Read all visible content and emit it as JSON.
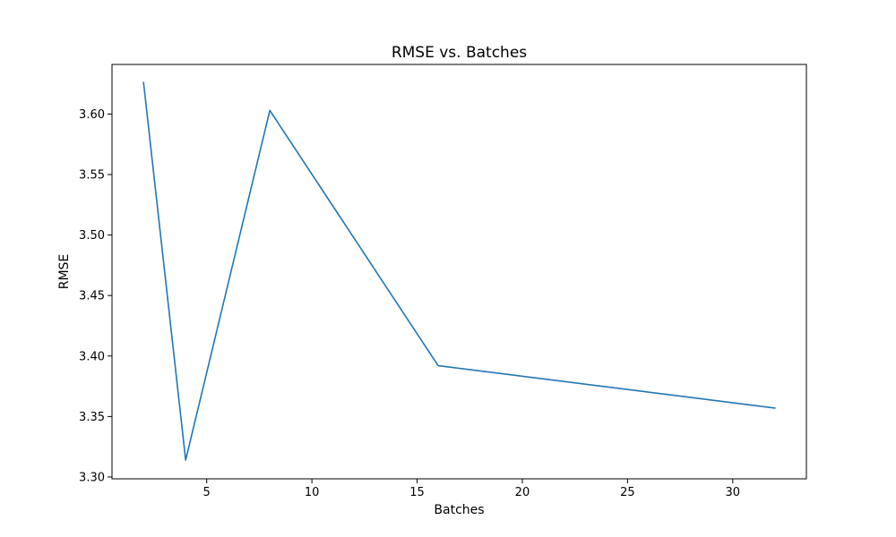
{
  "chart_data": {
    "type": "line",
    "title": "RMSE vs. Batches",
    "xlabel": "Batches",
    "ylabel": "RMSE",
    "xlim": [
      0.5,
      33.5
    ],
    "ylim": [
      3.2985,
      3.641
    ],
    "x_ticks": [
      5,
      10,
      15,
      20,
      25,
      30
    ],
    "y_ticks": [
      3.3,
      3.35,
      3.4,
      3.45,
      3.5,
      3.55,
      3.6
    ],
    "y_tick_labels": [
      "3.30",
      "3.35",
      "3.40",
      "3.45",
      "3.50",
      "3.55",
      "3.60"
    ],
    "grid": false,
    "series": [
      {
        "x": [
          2,
          4,
          8,
          16,
          32
        ],
        "values": [
          3.626,
          3.314,
          3.603,
          3.392,
          3.357
        ],
        "color": "#1f77b4"
      }
    ]
  }
}
